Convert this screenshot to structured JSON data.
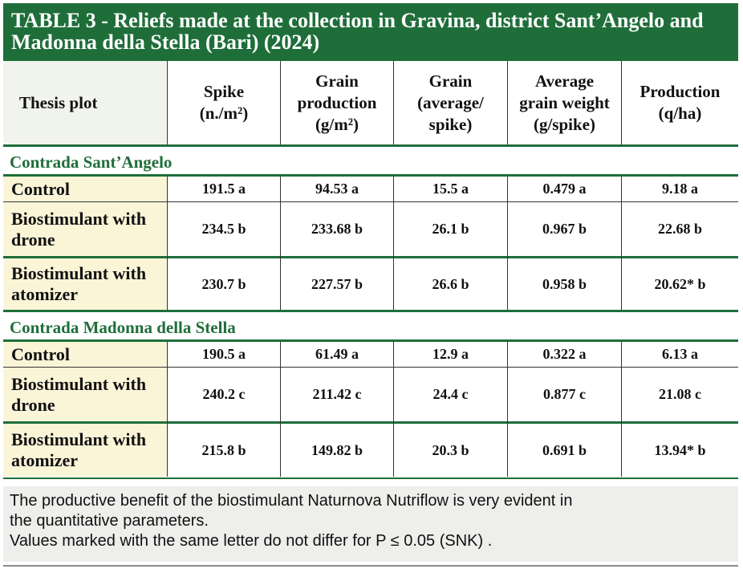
{
  "title": {
    "line1": "TABLE 3 - Reliefs made at the collection in Gravina, district Sant’Angelo and",
    "line2": "Madonna della Stella (Bari) (2024)"
  },
  "columns": [
    {
      "l1": "Thesis plot"
    },
    {
      "l1": "Spike",
      "l2": "(n./m²)"
    },
    {
      "l1": "Grain",
      "l2": "production",
      "l3": "(g/m²)"
    },
    {
      "l1": "Grain",
      "l2": "(average/",
      "l3": "spike)"
    },
    {
      "l1": "Average",
      "l2": "grain weight",
      "l3": "(g/spike)"
    },
    {
      "l1": "Production",
      "l2": "(q/ha)"
    }
  ],
  "sections": [
    {
      "label": "Contrada Sant’Angelo",
      "rows": [
        {
          "l1": "Control",
          "l2": "",
          "v": [
            "191.5 a",
            "94.53 a",
            "15.5 a",
            "0.479 a",
            "9.18 a"
          ]
        },
        {
          "l1": "Biostimulant with",
          "l2": "drone",
          "v": [
            "234.5 b",
            "233.68 b",
            "26.1 b",
            "0.967 b",
            "22.68 b"
          ]
        },
        {
          "l1": "Biostimulant with",
          "l2": "atomizer",
          "v": [
            "230.7 b",
            "227.57 b",
            "26.6 b",
            "0.958 b",
            "20.62* b"
          ]
        }
      ]
    },
    {
      "label": "Contrada Madonna della Stella",
      "rows": [
        {
          "l1": "Control",
          "l2": "",
          "v": [
            "190.5 a",
            "61.49 a",
            "12.9 a",
            "0.322 a",
            "6.13 a"
          ]
        },
        {
          "l1": "Biostimulant with",
          "l2": "drone",
          "v": [
            "240.2 c",
            "211.42 c",
            "24.4 c",
            "0.877 c",
            "21.08 c"
          ]
        },
        {
          "l1": "Biostimulant with",
          "l2": "atomizer",
          "v": [
            "215.8 b",
            "149.82 b",
            "20.3 b",
            "0.691 b",
            "13.94* b"
          ]
        }
      ]
    }
  ],
  "note": {
    "line1": "The productive benefit of the biostimulant Naturnova Nutriflow is very evident in",
    "line2": "the quantitative parameters.",
    "line3": "Values marked with the same letter do not differ for P ≤ 0.05 (SNK) ."
  }
}
